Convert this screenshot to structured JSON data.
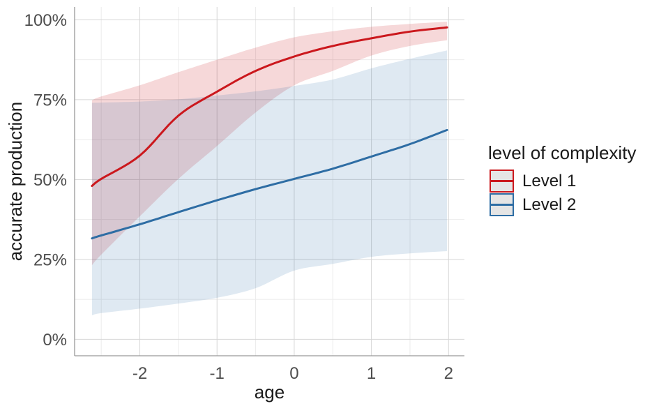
{
  "chart_data": {
    "type": "line",
    "title": "",
    "xlabel": "age",
    "ylabel": "accurate production",
    "xlim": [
      -2.845,
      2.205
    ],
    "ylim": [
      -5.15,
      104.0
    ],
    "x_ticks": {
      "values": [
        -2,
        -1,
        0,
        1,
        2
      ],
      "labels": [
        "-2",
        "-1",
        "0",
        "1",
        "2"
      ]
    },
    "y_ticks": {
      "values": [
        0,
        25,
        50,
        75,
        100
      ],
      "labels": [
        "0%",
        "25%",
        "50%",
        "75%",
        "100%"
      ]
    },
    "x_minor_ticks": [
      -2.5,
      -1.5,
      -0.5,
      0.5,
      1.5
    ],
    "y_minor_ticks": [
      12.5,
      37.5,
      62.5,
      87.5
    ],
    "grid": {
      "major_color": "#d6d6d6",
      "minor_color": "#ebebeb",
      "visible": "major+minor"
    },
    "axis_line_color": "#999999",
    "tick_label_color": "#4d4d4d",
    "title_color": "#1a1a1a",
    "legend": {
      "title": "level of complexity",
      "position": "right",
      "key_fill": "#e5e5e5",
      "entries": [
        {
          "label": "Level 1",
          "color": "#cb181d"
        },
        {
          "label": "Level 2",
          "color": "#2e6da4"
        }
      ]
    },
    "series": [
      {
        "name": "Level 1",
        "color": "#cb181d",
        "band_fill": "rgba(203,24,29,0.17)",
        "unit": "percent accurate production",
        "x": [
          -2.62,
          -2.5,
          -2.0,
          -1.5,
          -1.0,
          -0.5,
          0.0,
          0.5,
          1.0,
          1.5,
          1.98
        ],
        "mean": [
          48.0,
          50.2,
          57.5,
          70.0,
          77.5,
          84.0,
          88.5,
          91.8,
          94.2,
          96.3,
          97.6
        ],
        "upper": [
          74.8,
          76.0,
          79.5,
          83.6,
          87.5,
          91.3,
          94.5,
          96.4,
          97.8,
          98.7,
          99.4
        ],
        "lower": [
          23.2,
          26.5,
          38.5,
          50.2,
          60.5,
          71.0,
          79.5,
          84.0,
          88.8,
          91.8,
          93.6
        ]
      },
      {
        "name": "Level 2",
        "color": "#2e6da4",
        "band_fill": "rgba(43,109,168,0.15)",
        "unit": "percent accurate production",
        "x": [
          -2.62,
          -2.5,
          -2.0,
          -1.5,
          -1.0,
          -0.5,
          0.0,
          0.5,
          1.0,
          1.5,
          1.98
        ],
        "mean": [
          31.6,
          32.5,
          36.0,
          39.8,
          43.5,
          47.0,
          50.2,
          53.4,
          57.2,
          61.1,
          65.5
        ],
        "upper": [
          74.0,
          74.1,
          74.4,
          75.1,
          76.3,
          77.6,
          79.3,
          81.3,
          84.8,
          87.8,
          90.4
        ],
        "lower": [
          7.5,
          8.2,
          9.6,
          11.2,
          13.0,
          16.0,
          21.5,
          23.6,
          25.8,
          26.9,
          27.6
        ]
      }
    ]
  }
}
